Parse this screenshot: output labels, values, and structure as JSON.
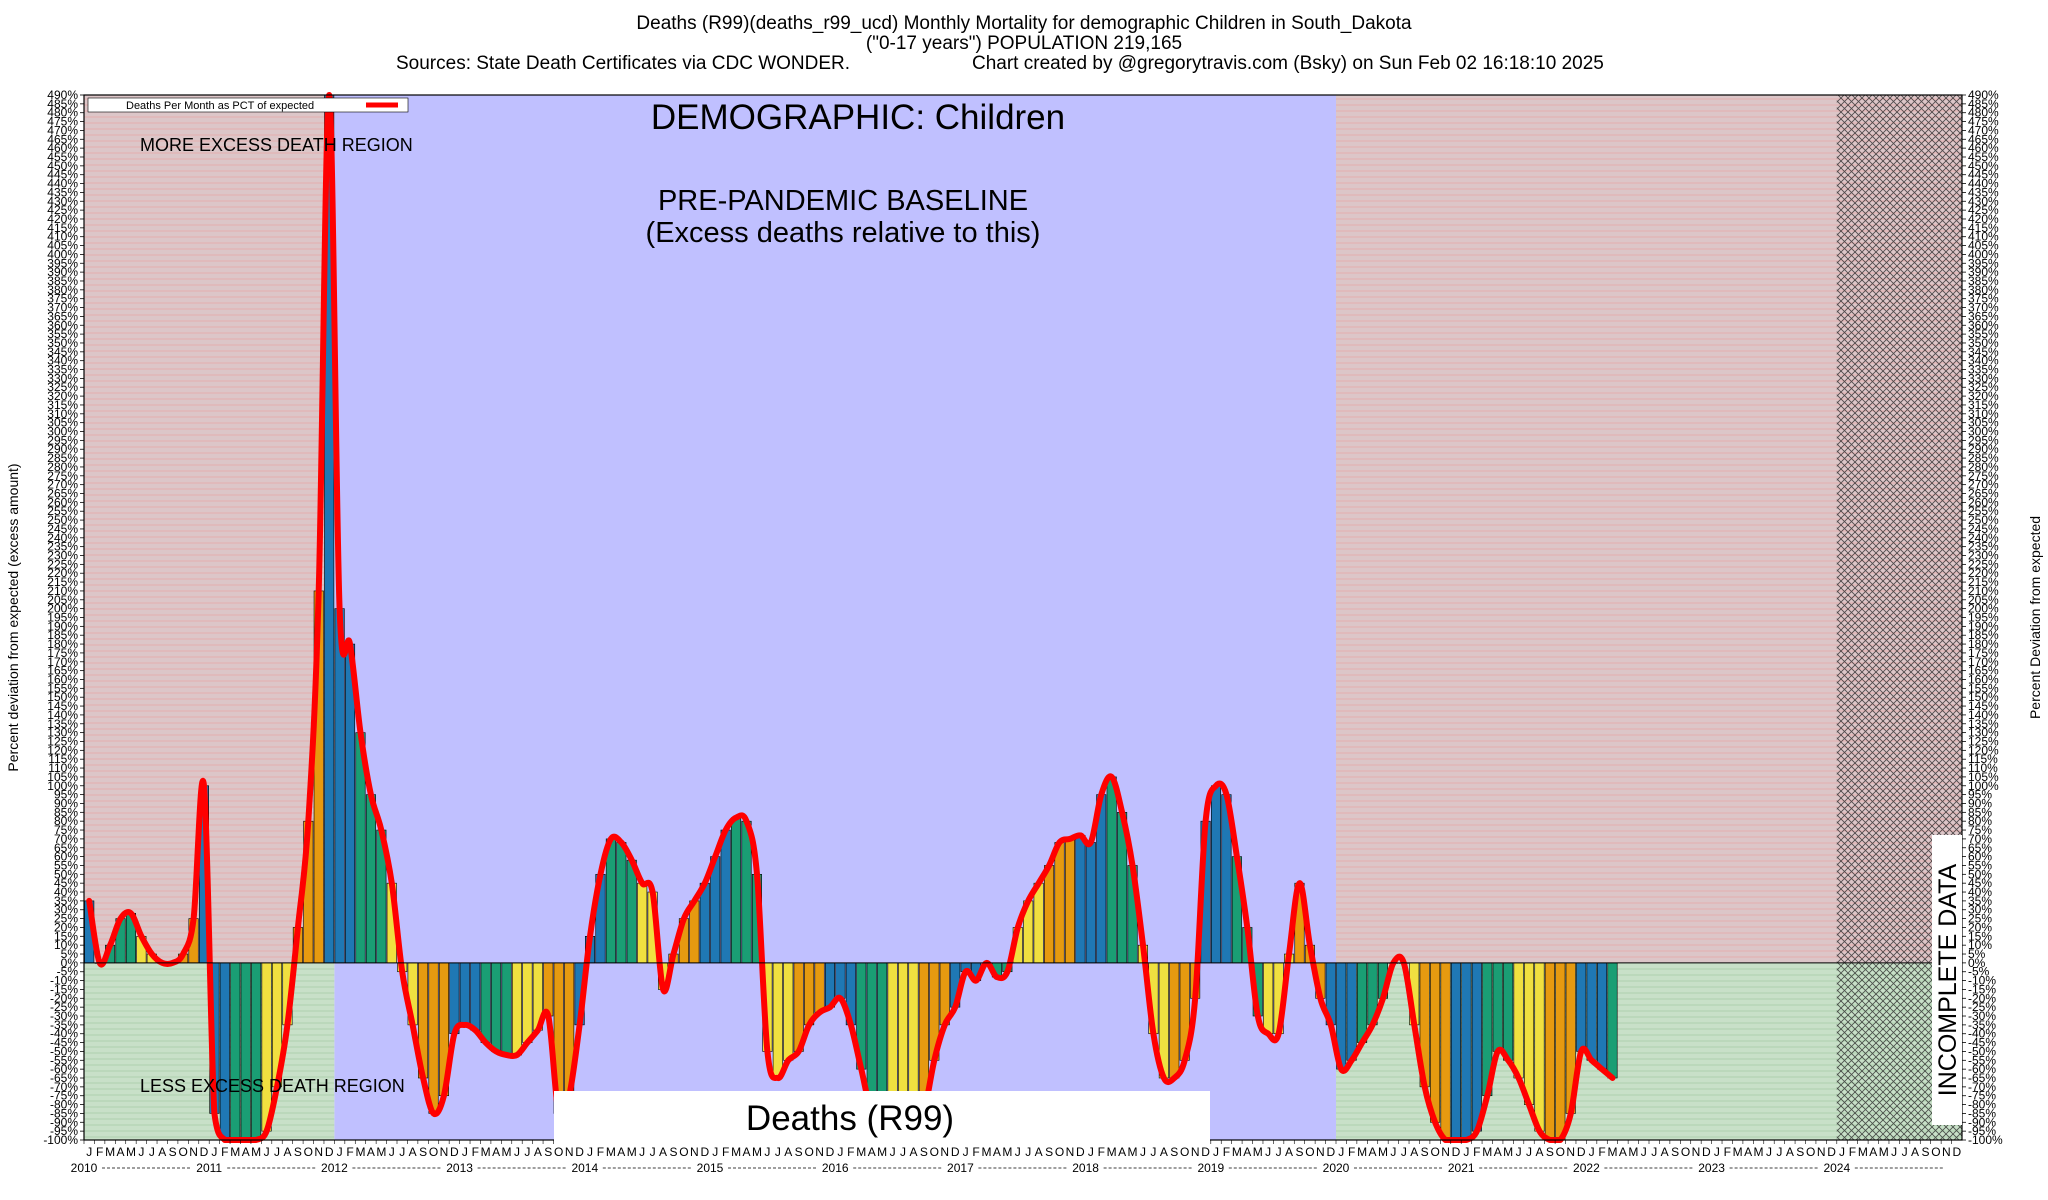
{
  "header": {
    "title": "Deaths (R99)(deaths_r99_ucd) Monthly Mortality for demographic Children in South_Dakota",
    "subtitle": "(\"0-17 years\") POPULATION 219,165",
    "sources": "Sources: State Death Certificates via CDC WONDER.",
    "credit": "Chart created by @gregorytravis.com (Bsky) on Sun Feb 02 16:18:10 2025"
  },
  "colors": {
    "baseline_region": "#c0c0ff",
    "excess_region": "#dcc6c8",
    "less_region": "#c8e0c8",
    "line": "#ff0000",
    "bar_blue": "#1f78b4",
    "bar_green": "#1a9e74",
    "bar_orange": "#e69a10",
    "bar_yellow": "#f0e040"
  },
  "chart_data": {
    "type": "bar",
    "ylabel_left": "Percent deviation from expected (excess amount)",
    "ylabel_right": "Percent Deviation from expected",
    "legend": "Deaths Per Month as PCT of expected",
    "ylim": [
      -100,
      490
    ],
    "ytick_step": 5,
    "x_start": "2010-01",
    "month_letters": [
      "J",
      "F",
      "M",
      "A",
      "M",
      "J",
      "J",
      "A",
      "S",
      "O",
      "N",
      "D"
    ],
    "years": [
      "2010",
      "2011",
      "2012",
      "2013",
      "2014",
      "2015",
      "2016",
      "2017",
      "2018",
      "2019",
      "2020",
      "2021",
      "2022",
      "2023",
      "2024"
    ],
    "annotations": {
      "demographic": "DEMOGRAPHIC: Children",
      "baseline_line1": "PRE-PANDEMIC BASELINE",
      "baseline_line2": "(Excess deaths relative to this)",
      "more_region": "MORE EXCESS DEATH REGION",
      "less_region": "LESS EXCESS DEATH REGION",
      "cause": "Deaths (R99)",
      "incomplete": "INCOMPLETE DATA"
    },
    "regions": [
      {
        "name": "pre-baseline",
        "start": "2010-01",
        "end": "2011-12"
      },
      {
        "name": "pre-pandemic baseline",
        "start": "2012-01",
        "end": "2019-12"
      },
      {
        "name": "pandemic",
        "start": "2020-01",
        "end": "2023-12"
      },
      {
        "name": "incomplete data",
        "start": "2024-01",
        "end": "2024-12"
      }
    ],
    "values": [
      35,
      0,
      10,
      25,
      28,
      15,
      5,
      0,
      0,
      5,
      25,
      100,
      -85,
      -100,
      -100,
      -100,
      -100,
      -95,
      -70,
      -35,
      20,
      80,
      210,
      490,
      200,
      180,
      130,
      95,
      75,
      45,
      -5,
      -35,
      -65,
      -85,
      -75,
      -40,
      -35,
      -38,
      -45,
      -50,
      -52,
      -52,
      -45,
      -38,
      -30,
      -85,
      -75,
      -35,
      15,
      50,
      70,
      68,
      58,
      45,
      40,
      -15,
      5,
      25,
      35,
      45,
      60,
      75,
      82,
      80,
      50,
      -50,
      -65,
      -55,
      -50,
      -35,
      -28,
      -25,
      -20,
      -35,
      -60,
      -85,
      -90,
      -90,
      -75,
      -100,
      -85,
      -55,
      -35,
      -25,
      -5,
      -10,
      0,
      -8,
      -5,
      20,
      35,
      45,
      55,
      68,
      70,
      72,
      68,
      95,
      105,
      85,
      55,
      10,
      -40,
      -65,
      -65,
      -55,
      -20,
      80,
      100,
      95,
      60,
      20,
      -30,
      -40,
      -40,
      5,
      45,
      10,
      -20,
      -35,
      -60,
      -55,
      -45,
      -35,
      -20,
      0,
      0,
      -35,
      -70,
      -90,
      -100,
      -100,
      -100,
      -95,
      -75,
      -50,
      -55,
      -65,
      -80,
      -95,
      -100,
      -100,
      -85,
      -50,
      -55,
      -60,
      -65
    ]
  }
}
